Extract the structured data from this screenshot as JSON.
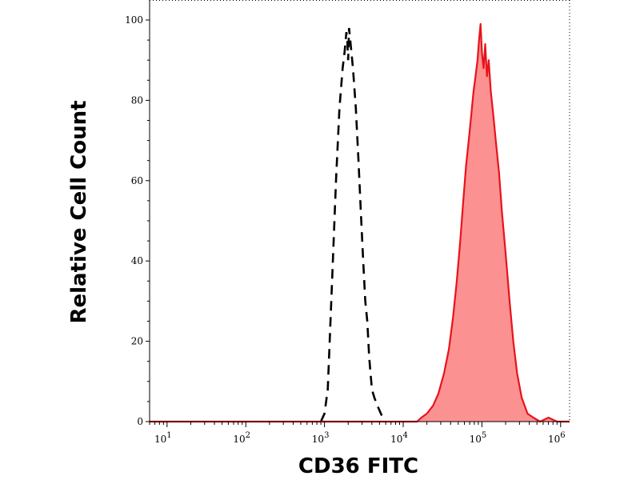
{
  "chart_data": {
    "type": "area",
    "xlabel": "CD36 FITC",
    "ylabel": "Relative Cell Count",
    "x_scale": "log",
    "xlim": [
      6,
      1300000
    ],
    "ylim": [
      0,
      100
    ],
    "x_ticks": [
      {
        "value": 10,
        "base": "10",
        "exp": "1"
      },
      {
        "value": 100,
        "base": "10",
        "exp": "2"
      },
      {
        "value": 1000,
        "base": "10",
        "exp": "3"
      },
      {
        "value": 10000,
        "base": "10",
        "exp": "4"
      },
      {
        "value": 100000,
        "base": "10",
        "exp": "5"
      },
      {
        "value": 1000000,
        "base": "10",
        "exp": "6"
      }
    ],
    "y_ticks": [
      0,
      20,
      40,
      60,
      80,
      100
    ],
    "grid": false,
    "legend": "none",
    "series": [
      {
        "style": "dashed-line",
        "color": "#000000",
        "points": [
          [
            900,
            0
          ],
          [
            1000,
            2
          ],
          [
            1100,
            8
          ],
          [
            1250,
            35
          ],
          [
            1400,
            60
          ],
          [
            1550,
            78
          ],
          [
            1700,
            88
          ],
          [
            1800,
            92
          ],
          [
            1900,
            97
          ],
          [
            1950,
            95
          ],
          [
            2000,
            90
          ],
          [
            2050,
            98
          ],
          [
            2150,
            94
          ],
          [
            2300,
            88
          ],
          [
            2500,
            78
          ],
          [
            2700,
            65
          ],
          [
            2900,
            52
          ],
          [
            3100,
            40
          ],
          [
            3300,
            30
          ],
          [
            3500,
            25
          ],
          [
            3700,
            16
          ],
          [
            4000,
            8
          ],
          [
            4300,
            6
          ],
          [
            4700,
            4
          ],
          [
            5200,
            2
          ],
          [
            5800,
            0
          ]
        ]
      },
      {
        "style": "filled",
        "color": "#e8131b",
        "fill": "#fc9191",
        "points": [
          [
            6,
            0
          ],
          [
            10000,
            0
          ],
          [
            15000,
            0
          ],
          [
            17000,
            1
          ],
          [
            20000,
            2
          ],
          [
            24000,
            4
          ],
          [
            28000,
            7
          ],
          [
            33000,
            12
          ],
          [
            38000,
            18
          ],
          [
            43000,
            26
          ],
          [
            48000,
            35
          ],
          [
            53000,
            45
          ],
          [
            58000,
            55
          ],
          [
            63000,
            64
          ],
          [
            68000,
            70
          ],
          [
            73000,
            76
          ],
          [
            78000,
            82
          ],
          [
            83000,
            86
          ],
          [
            88000,
            90
          ],
          [
            92000,
            95
          ],
          [
            96000,
            99
          ],
          [
            100000,
            92
          ],
          [
            105000,
            88
          ],
          [
            110000,
            94
          ],
          [
            116000,
            86
          ],
          [
            122000,
            90
          ],
          [
            130000,
            82
          ],
          [
            140000,
            76
          ],
          [
            150000,
            70
          ],
          [
            165000,
            62
          ],
          [
            180000,
            52
          ],
          [
            200000,
            42
          ],
          [
            225000,
            30
          ],
          [
            250000,
            20
          ],
          [
            280000,
            12
          ],
          [
            320000,
            6
          ],
          [
            380000,
            2
          ],
          [
            450000,
            1
          ],
          [
            550000,
            0
          ],
          [
            700000,
            1
          ],
          [
            900000,
            0
          ],
          [
            1300000,
            0
          ]
        ]
      }
    ]
  }
}
